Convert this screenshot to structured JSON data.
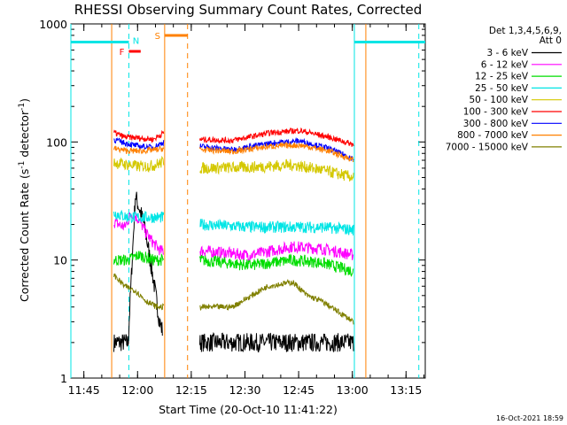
{
  "chart_data": {
    "type": "line",
    "title": "RHESSI Observing Summary Count Rates, Corrected",
    "xlabel": "Start Time (20-Oct-10 11:41:22)",
    "ylabel_main": "Corrected Count Rate (s",
    "ylabel_sup1": "-1",
    "ylabel_mid": " detector",
    "ylabel_sup2": "-1",
    "ylabel_end": ")",
    "yscale": "log",
    "ylim": [
      1,
      1000
    ],
    "y_ticks": [
      {
        "value": 1,
        "label": "1"
      },
      {
        "value": 10,
        "label": "10"
      },
      {
        "value": 100,
        "label": "100"
      },
      {
        "value": 1000,
        "label": "1000"
      }
    ],
    "x_unit": "minutes after 11:41:22",
    "xlim": [
      0,
      99
    ],
    "x_ticks": [
      {
        "value": 3.63,
        "label": "11:45"
      },
      {
        "value": 18.63,
        "label": "12:00"
      },
      {
        "value": 33.63,
        "label": "12:15"
      },
      {
        "value": 48.63,
        "label": "12:30"
      },
      {
        "value": 63.63,
        "label": "12:45"
      },
      {
        "value": 78.63,
        "label": "13:00"
      },
      {
        "value": 93.63,
        "label": "13:15"
      }
    ],
    "legend_header": [
      "Det 1,3,4,5,6,9,",
      "Att 0"
    ],
    "legend": [
      {
        "label": "3 - 6 keV",
        "color": "#000000"
      },
      {
        "label": "6 - 12 keV",
        "color": "#ff00ff"
      },
      {
        "label": "12 - 25 keV",
        "color": "#00dd00"
      },
      {
        "label": "25 - 50 keV",
        "color": "#00e5e5"
      },
      {
        "label": "50 - 100 keV",
        "color": "#d4c800"
      },
      {
        "label": "100 - 300 keV",
        "color": "#ff0000"
      },
      {
        "label": "300 - 800 keV",
        "color": "#0000ff"
      },
      {
        "label": "800 - 7000 keV",
        "color": "#ff8000"
      },
      {
        "label": "7000 - 15000 keV",
        "color": "#808000"
      }
    ],
    "intervals": [
      {
        "label": "N",
        "color": "#00e5e5",
        "type": "night",
        "start": 0,
        "end": 16.2,
        "style": "solid"
      },
      {
        "label": "",
        "color": "#00e5e5",
        "type": "night",
        "start": 79.2,
        "end": 99,
        "style": "dashed"
      },
      {
        "label": "F",
        "color": "#ff0000",
        "type": "flare",
        "start": 16.2,
        "end": 19.5
      },
      {
        "label": "S",
        "color": "#ff8000",
        "type": "saa",
        "start": 26.2,
        "end": 32.6
      }
    ],
    "boundaries": [
      {
        "t": 0,
        "color": "#00e5e5",
        "style": "solid"
      },
      {
        "t": 16.2,
        "color": "#00e5e5",
        "style": "dashed"
      },
      {
        "t": 79.2,
        "color": "#00e5e5",
        "style": "solid"
      },
      {
        "t": 97.2,
        "color": "#00e5e5",
        "style": "dashed"
      },
      {
        "t": 26.2,
        "color": "#ff8000",
        "style": "solid"
      },
      {
        "t": 32.6,
        "color": "#ff8000",
        "style": "dashed"
      },
      {
        "t": 11.4,
        "color": "#ff8000",
        "style": "solid"
      },
      {
        "t": 82.4,
        "color": "#ff8000",
        "style": "solid"
      }
    ],
    "series": [
      {
        "name": "3 - 6 keV",
        "color": "#000000",
        "seg1": [
          [
            12,
            2
          ],
          [
            16,
            2
          ],
          [
            18,
            35
          ],
          [
            20.5,
            20
          ],
          [
            23,
            7
          ],
          [
            24.8,
            3
          ],
          [
            25.6,
            2.5
          ]
        ],
        "seg2": [
          [
            36,
            2
          ],
          [
            79,
            2
          ]
        ]
      },
      {
        "name": "6 - 12 keV",
        "color": "#ff00ff",
        "seg1": [
          [
            12,
            21
          ],
          [
            15,
            19
          ],
          [
            17,
            25
          ],
          [
            19,
            22
          ],
          [
            21,
            17
          ],
          [
            23,
            14
          ],
          [
            25,
            12
          ],
          [
            26,
            12
          ]
        ],
        "seg2": [
          [
            36,
            12
          ],
          [
            50,
            11
          ],
          [
            62,
            13
          ],
          [
            70,
            12.5
          ],
          [
            79,
            11
          ]
        ]
      },
      {
        "name": "12 - 25 keV",
        "color": "#00dd00",
        "seg1": [
          [
            12,
            10
          ],
          [
            16,
            10
          ],
          [
            19,
            11
          ],
          [
            23,
            10
          ],
          [
            26,
            10
          ]
        ],
        "seg2": [
          [
            36,
            10
          ],
          [
            50,
            9
          ],
          [
            62,
            10
          ],
          [
            70,
            9.5
          ],
          [
            79,
            8
          ]
        ]
      },
      {
        "name": "25 - 50 keV",
        "color": "#00e5e5",
        "seg1": [
          [
            12,
            25
          ],
          [
            16,
            23
          ],
          [
            19,
            23
          ],
          [
            23,
            23
          ],
          [
            26,
            23
          ]
        ],
        "seg2": [
          [
            36,
            20
          ],
          [
            50,
            19
          ],
          [
            62,
            19
          ],
          [
            70,
            19
          ],
          [
            79,
            18
          ]
        ]
      },
      {
        "name": "50 - 100 keV",
        "color": "#d4c800",
        "seg1": [
          [
            12,
            67
          ],
          [
            16,
            64
          ],
          [
            19,
            62
          ],
          [
            23,
            63
          ],
          [
            26,
            68
          ]
        ],
        "seg2": [
          [
            36,
            60
          ],
          [
            50,
            61
          ],
          [
            62,
            64
          ],
          [
            70,
            58
          ],
          [
            79,
            50
          ]
        ]
      },
      {
        "name": "100 - 300 keV",
        "color": "#ff0000",
        "seg1": [
          [
            12,
            120
          ],
          [
            15,
            110
          ],
          [
            19,
            108
          ],
          [
            23,
            105
          ],
          [
            26,
            120
          ]
        ],
        "seg2": [
          [
            36,
            105
          ],
          [
            45,
            103
          ],
          [
            56,
            120
          ],
          [
            64,
            125
          ],
          [
            72,
            110
          ],
          [
            79,
            95
          ]
        ]
      },
      {
        "name": "300 - 800 keV",
        "color": "#0000ff",
        "seg1": [
          [
            12,
            105
          ],
          [
            15,
            98
          ],
          [
            19,
            92
          ],
          [
            23,
            90
          ],
          [
            26,
            100
          ]
        ],
        "seg2": [
          [
            36,
            92
          ],
          [
            45,
            86
          ],
          [
            56,
            98
          ],
          [
            64,
            102
          ],
          [
            72,
            88
          ],
          [
            79,
            72
          ]
        ]
      },
      {
        "name": "800 - 7000 keV",
        "color": "#ff8000",
        "seg1": [
          [
            12,
            88
          ],
          [
            16,
            84
          ],
          [
            20,
            84
          ],
          [
            24,
            86
          ],
          [
            26,
            88
          ]
        ],
        "seg2": [
          [
            36,
            86
          ],
          [
            45,
            83
          ],
          [
            56,
            92
          ],
          [
            64,
            94
          ],
          [
            72,
            84
          ],
          [
            79,
            70
          ]
        ]
      },
      {
        "name": "7000 - 15000 keV",
        "color": "#808000",
        "seg1": [
          [
            12,
            7.5
          ],
          [
            15,
            6
          ],
          [
            18,
            5.5
          ],
          [
            21,
            4.5
          ],
          [
            24,
            4
          ],
          [
            26,
            4
          ]
        ],
        "seg2": [
          [
            36,
            4
          ],
          [
            45,
            4
          ],
          [
            55,
            6
          ],
          [
            62,
            6.5
          ],
          [
            66,
            5
          ],
          [
            70,
            4.5
          ],
          [
            79,
            3
          ]
        ]
      }
    ],
    "footer": "16-Oct-2021 18:59"
  }
}
